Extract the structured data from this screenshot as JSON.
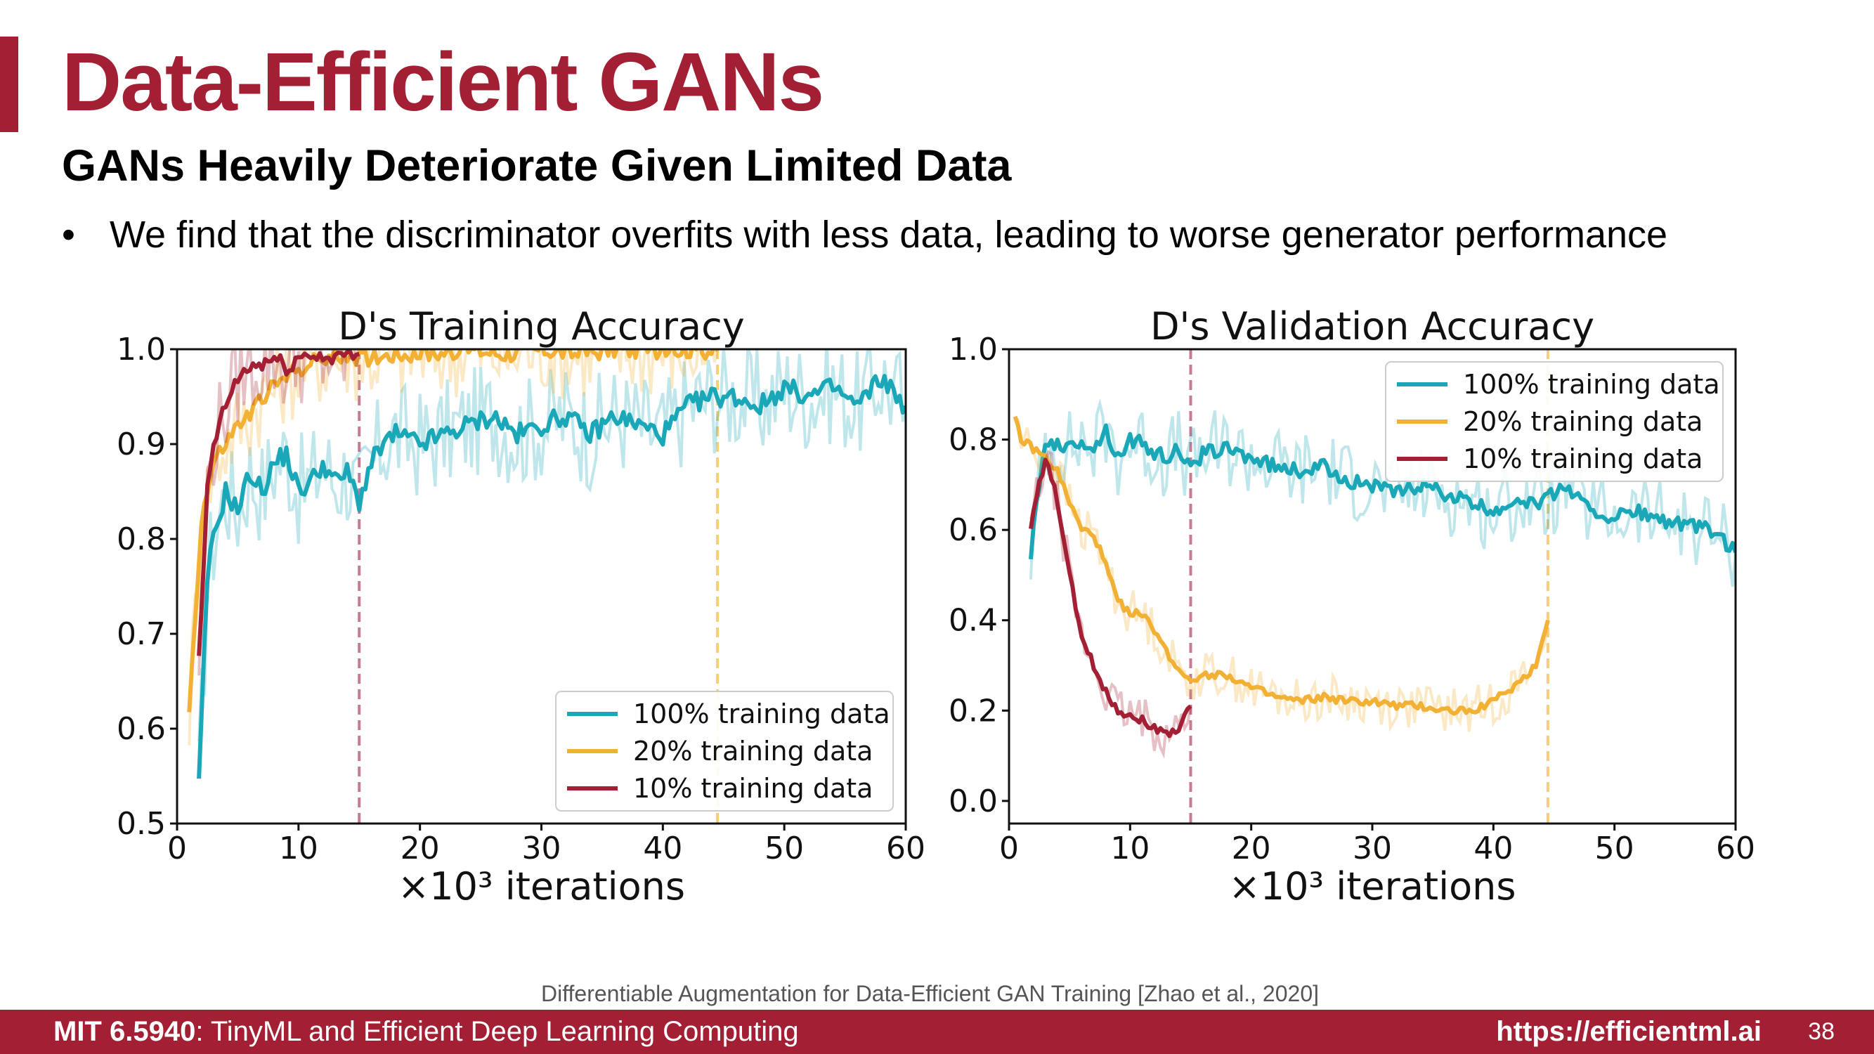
{
  "slide": {
    "title": "Data-Efficient GANs",
    "subtitle": "GANs Heavily Deteriorate Given Limited Data",
    "bullet": "We find that the discriminator overfits with less data, leading to worse generator performance",
    "bullet_symbol": "•",
    "citation": "Differentiable Augmentation for Data-Efficient GAN Training [Zhao et al., 2020]",
    "accent_color": "#a31f34"
  },
  "footer": {
    "course_code": "MIT 6.5940",
    "course_name": ": TinyML and Efficient Deep Learning Computing",
    "url": "https://efficientml.ai",
    "page": "38"
  },
  "chart_data": [
    {
      "type": "line",
      "title": "D's Training Accuracy",
      "xlabel": "×10³ iterations",
      "xlim": [
        0,
        60
      ],
      "ylim": [
        0.5,
        1.0
      ],
      "xticks": [
        0,
        10,
        20,
        30,
        40,
        50,
        60
      ],
      "yticks": [
        0.5,
        0.6,
        0.7,
        0.8,
        0.9,
        1.0
      ],
      "ytick_labels": [
        "0.5",
        "0.6",
        "0.7",
        "0.8",
        "0.9",
        "1.0"
      ],
      "legend_position": "lower-right",
      "vlines": [
        {
          "x": 15,
          "color": "#c97a93"
        },
        {
          "x": 44.5,
          "color": "#f6cf7a"
        }
      ],
      "series": [
        {
          "name": "100% training data",
          "color": "#1aa8b8",
          "x": [
            1.8,
            2.5,
            3,
            4,
            5,
            6,
            7,
            8,
            9,
            10,
            11,
            12,
            13,
            14,
            15,
            16,
            17,
            18,
            20,
            22,
            24,
            26,
            28,
            30,
            32,
            34,
            36,
            38,
            40,
            42,
            44,
            46,
            48,
            50,
            52,
            54,
            56,
            58,
            60
          ],
          "y": [
            0.54,
            0.76,
            0.8,
            0.85,
            0.83,
            0.87,
            0.85,
            0.88,
            0.89,
            0.85,
            0.86,
            0.88,
            0.86,
            0.87,
            0.84,
            0.88,
            0.9,
            0.91,
            0.9,
            0.91,
            0.92,
            0.93,
            0.91,
            0.92,
            0.93,
            0.91,
            0.93,
            0.92,
            0.91,
            0.94,
            0.95,
            0.95,
            0.94,
            0.96,
            0.95,
            0.96,
            0.94,
            0.97,
            0.94
          ]
        },
        {
          "name": "20% training data",
          "color": "#f2b134",
          "x": [
            1,
            2,
            3,
            4,
            5,
            6,
            7,
            8,
            9,
            10,
            11,
            12,
            13,
            14,
            15,
            18,
            21,
            24,
            27,
            30,
            33,
            36,
            39,
            42,
            44.5
          ],
          "y": [
            0.62,
            0.82,
            0.88,
            0.9,
            0.92,
            0.93,
            0.95,
            0.96,
            0.97,
            0.98,
            0.985,
            0.99,
            0.99,
            0.995,
            0.99,
            0.995,
            0.995,
            1.0,
            0.995,
            1.0,
            0.995,
            1.0,
            0.998,
            1.0,
            0.998
          ]
        },
        {
          "name": "10% training data",
          "color": "#a31f34",
          "x": [
            1.8,
            2.5,
            3,
            4,
            5,
            6,
            7,
            8,
            9,
            10,
            11,
            12,
            13,
            14,
            15
          ],
          "y": [
            0.67,
            0.85,
            0.9,
            0.94,
            0.97,
            0.98,
            0.985,
            0.99,
            0.98,
            0.99,
            0.995,
            0.99,
            0.995,
            0.99,
            0.995
          ]
        }
      ]
    },
    {
      "type": "line",
      "title": "D's Validation Accuracy",
      "xlabel": "×10³ iterations",
      "xlim": [
        0,
        60
      ],
      "ylim": [
        -0.05,
        1.0
      ],
      "xticks": [
        0,
        10,
        20,
        30,
        40,
        50,
        60
      ],
      "yticks": [
        0.0,
        0.2,
        0.4,
        0.6,
        0.8,
        1.0
      ],
      "ytick_labels": [
        "0.0",
        "0.2",
        "0.4",
        "0.6",
        "0.8",
        "1.0"
      ],
      "legend_position": "upper-right",
      "vlines": [
        {
          "x": 15,
          "color": "#c97a93"
        },
        {
          "x": 44.5,
          "color": "#f6cf7a"
        }
      ],
      "series": [
        {
          "name": "100% training data",
          "color": "#1aa8b8",
          "x": [
            1.8,
            3,
            4,
            5,
            6,
            7,
            8,
            9,
            10,
            11,
            12,
            13,
            14,
            15,
            16,
            18,
            20,
            22,
            24,
            26,
            28,
            30,
            32,
            34,
            36,
            38,
            40,
            42,
            44,
            46,
            48,
            50,
            52,
            54,
            56,
            58,
            60
          ],
          "y": [
            0.55,
            0.8,
            0.79,
            0.78,
            0.8,
            0.78,
            0.82,
            0.76,
            0.8,
            0.79,
            0.77,
            0.76,
            0.78,
            0.73,
            0.77,
            0.78,
            0.76,
            0.74,
            0.73,
            0.74,
            0.71,
            0.7,
            0.68,
            0.7,
            0.68,
            0.66,
            0.64,
            0.67,
            0.66,
            0.7,
            0.64,
            0.63,
            0.64,
            0.62,
            0.61,
            0.6,
            0.55
          ]
        },
        {
          "name": "20% training data",
          "color": "#f2b134",
          "x": [
            0.5,
            1,
            2,
            3,
            4,
            5,
            6,
            7,
            8,
            9,
            10,
            11,
            12,
            13,
            14,
            15,
            16,
            18,
            20,
            22,
            24,
            26,
            28,
            30,
            32,
            34,
            36,
            38,
            40,
            42,
            43.5,
            44.5
          ],
          "y": [
            0.85,
            0.8,
            0.78,
            0.76,
            0.73,
            0.66,
            0.6,
            0.59,
            0.52,
            0.44,
            0.42,
            0.41,
            0.38,
            0.33,
            0.29,
            0.27,
            0.28,
            0.28,
            0.25,
            0.23,
            0.22,
            0.23,
            0.22,
            0.22,
            0.21,
            0.21,
            0.2,
            0.2,
            0.22,
            0.26,
            0.3,
            0.4
          ]
        },
        {
          "name": "10% training data",
          "color": "#a31f34",
          "x": [
            1.8,
            2.5,
            3,
            3.5,
            4,
            4.5,
            5,
            5.5,
            6,
            7,
            8,
            9,
            10,
            11,
            12,
            13,
            14,
            15
          ],
          "y": [
            0.61,
            0.7,
            0.75,
            0.72,
            0.66,
            0.58,
            0.5,
            0.43,
            0.36,
            0.3,
            0.24,
            0.2,
            0.19,
            0.18,
            0.16,
            0.15,
            0.16,
            0.21
          ]
        }
      ]
    }
  ]
}
